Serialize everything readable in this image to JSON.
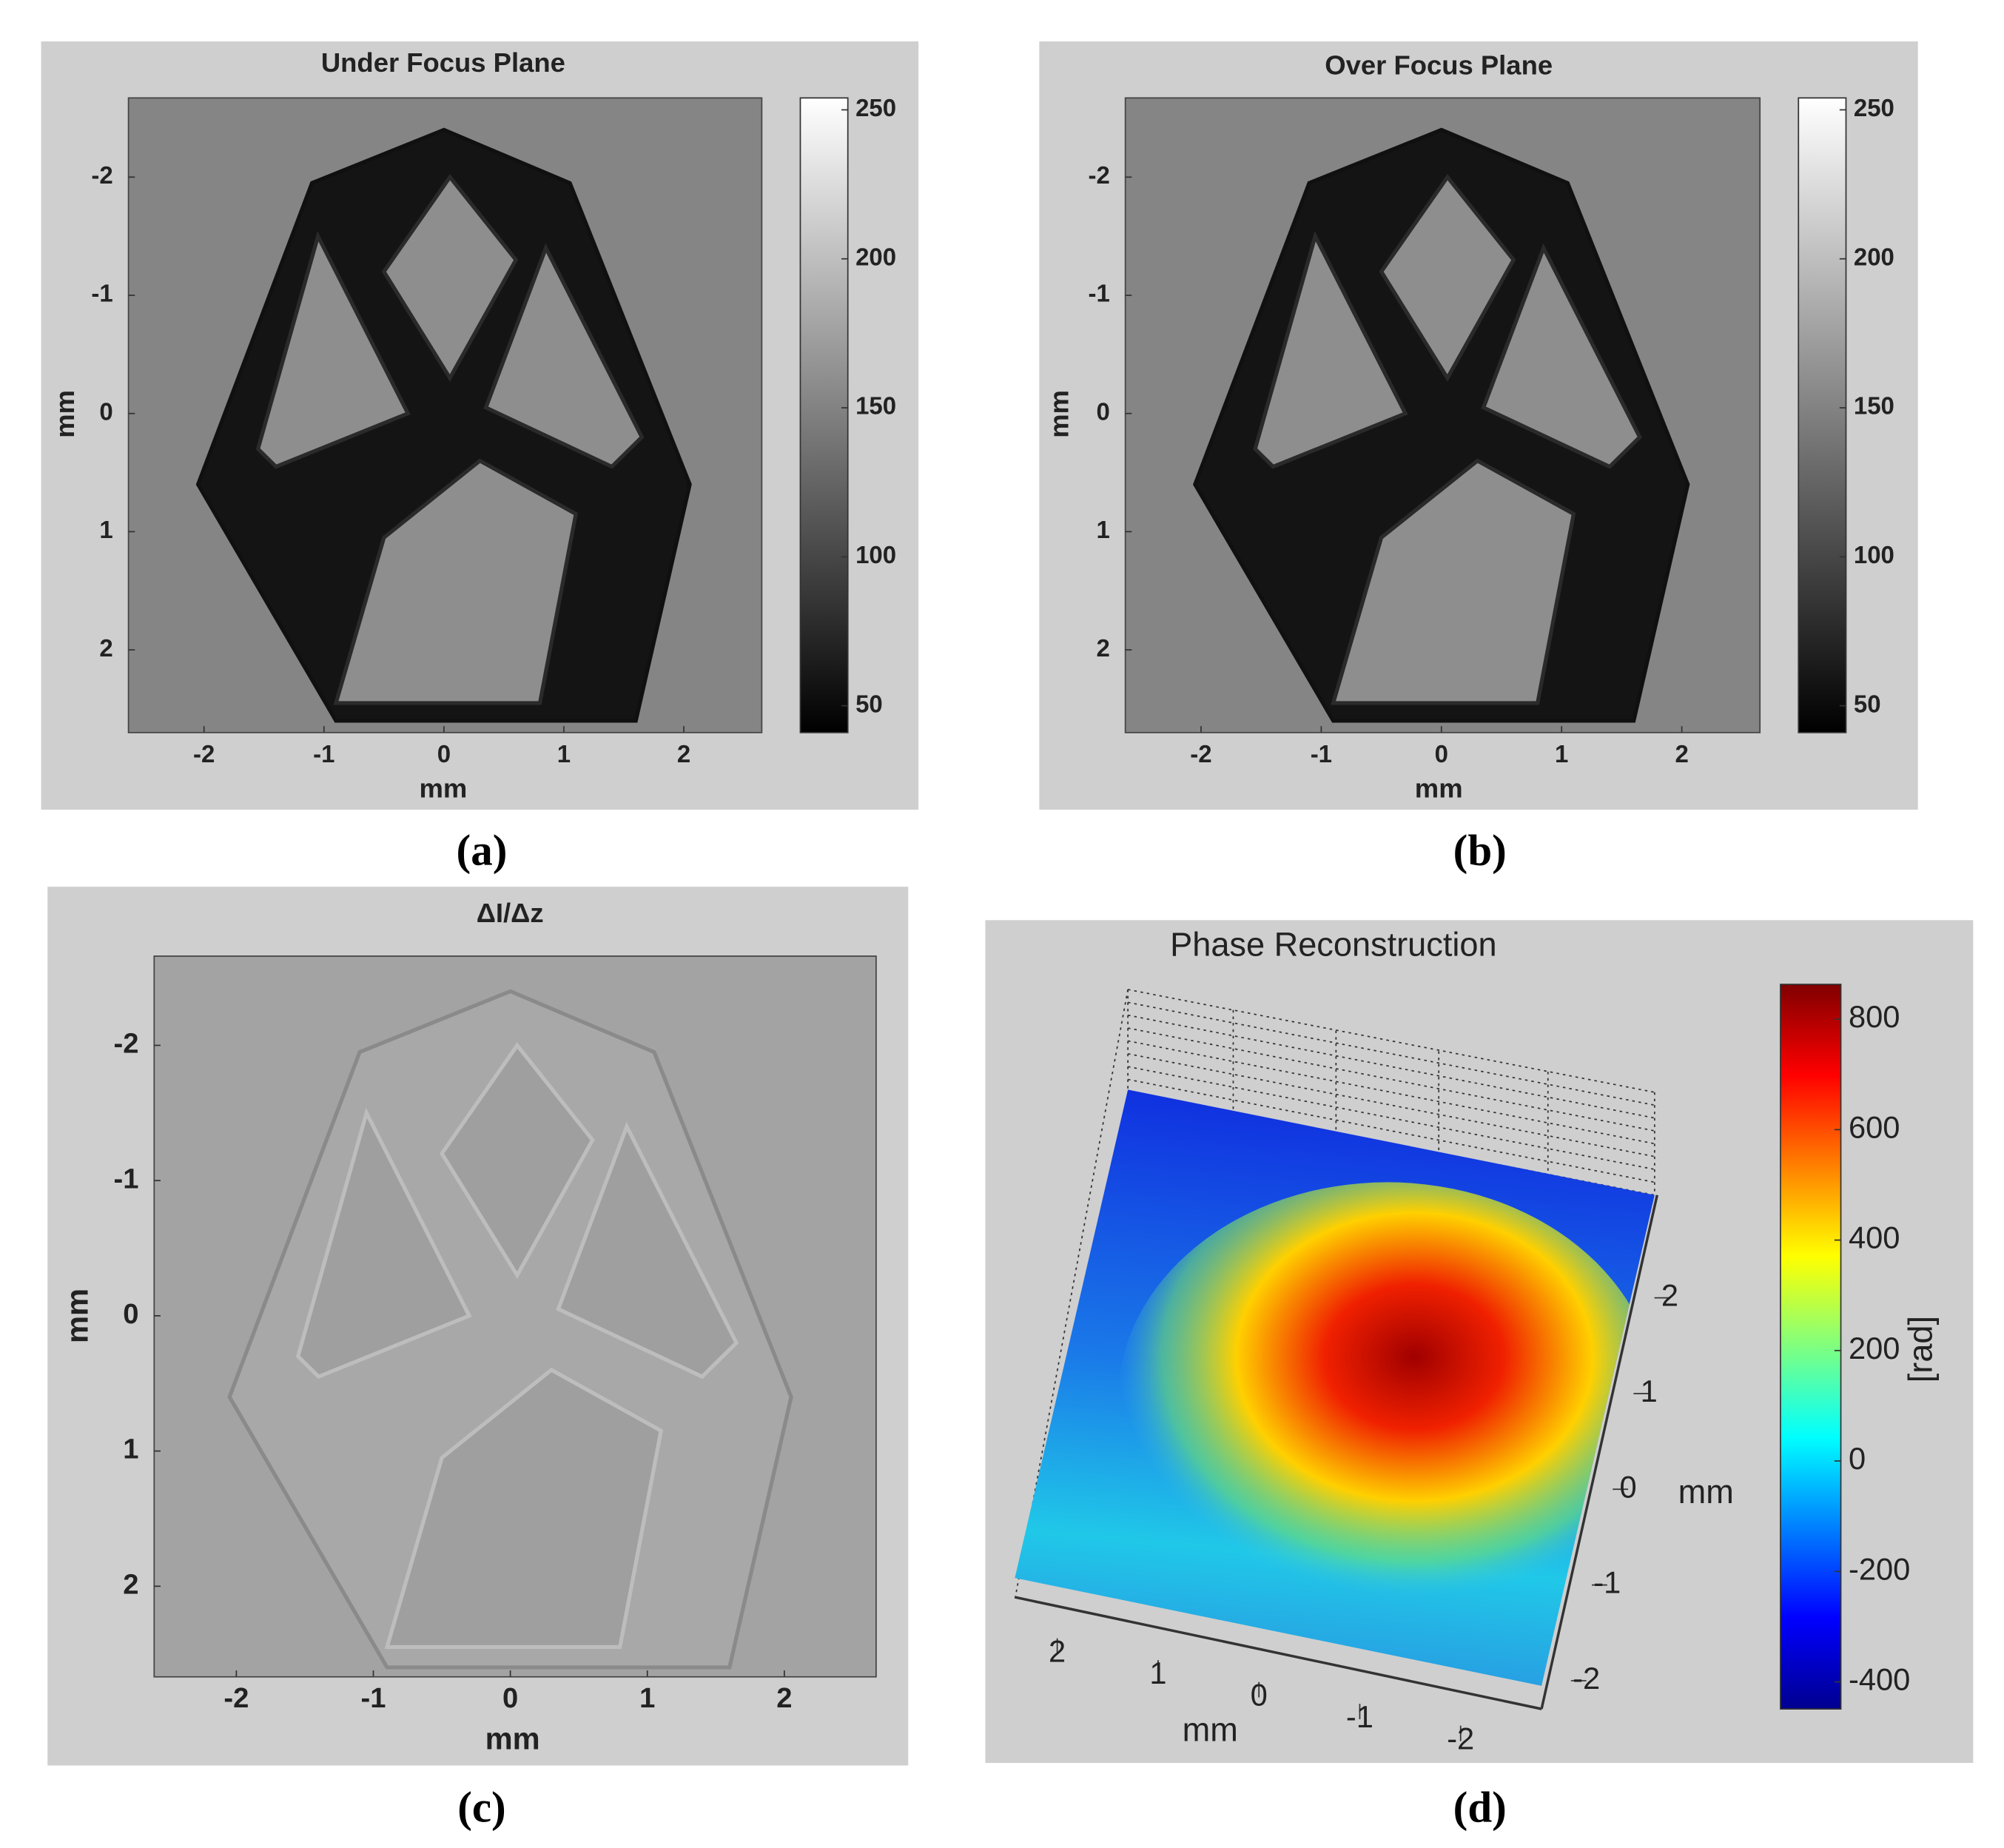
{
  "chart_data": [
    {
      "type": "image",
      "title": "Under Focus Plane",
      "xlabel": "mm",
      "ylabel": "mm",
      "xlim": [
        -2.63,
        2.65
      ],
      "ylim": [
        -2.67,
        2.7
      ],
      "xticks": [
        -2,
        -1,
        0,
        1,
        2
      ],
      "yticks": [
        -2,
        -1,
        0,
        1,
        2
      ],
      "clim": [
        41,
        254
      ],
      "cticks": [
        50,
        100,
        150,
        200,
        250
      ],
      "colormap": "gray",
      "panel_label": "(a)"
    },
    {
      "type": "image",
      "title": "Over Focus Plane",
      "xlabel": "mm",
      "ylabel": "mm",
      "xlim": [
        -2.63,
        2.65
      ],
      "ylim": [
        -2.67,
        2.7
      ],
      "xticks": [
        -2,
        -1,
        0,
        1,
        2
      ],
      "yticks": [
        -2,
        -1,
        0,
        1,
        2
      ],
      "clim": [
        41,
        254
      ],
      "cticks": [
        50,
        100,
        150,
        200,
        250
      ],
      "colormap": "gray",
      "panel_label": "(b)"
    },
    {
      "type": "image",
      "title": "ΔI/Δz",
      "xlabel": "mm",
      "ylabel": "mm",
      "xlim": [
        -2.6,
        2.67
      ],
      "ylim": [
        -2.66,
        2.67
      ],
      "xticks": [
        -2,
        -1,
        0,
        1,
        2
      ],
      "yticks": [
        -2,
        -1,
        0,
        1,
        2
      ],
      "panel_label": "(c)"
    },
    {
      "type": "surface",
      "title": "Phase Reconstruction",
      "xlabel": "mm",
      "ylabel": "mm",
      "xlim": [
        2.5,
        -2.5
      ],
      "ylim": [
        2.5,
        -2.5
      ],
      "xticks": [
        2,
        1,
        0,
        -1,
        -2
      ],
      "yticks": [
        2,
        1,
        0,
        -1,
        -2
      ],
      "clim": [
        -449,
        863
      ],
      "cticks": [
        800,
        600,
        400,
        200,
        0,
        -200,
        -400
      ],
      "clabel": "[rad]",
      "colormap": "jet",
      "panel_label": "(d)"
    }
  ]
}
